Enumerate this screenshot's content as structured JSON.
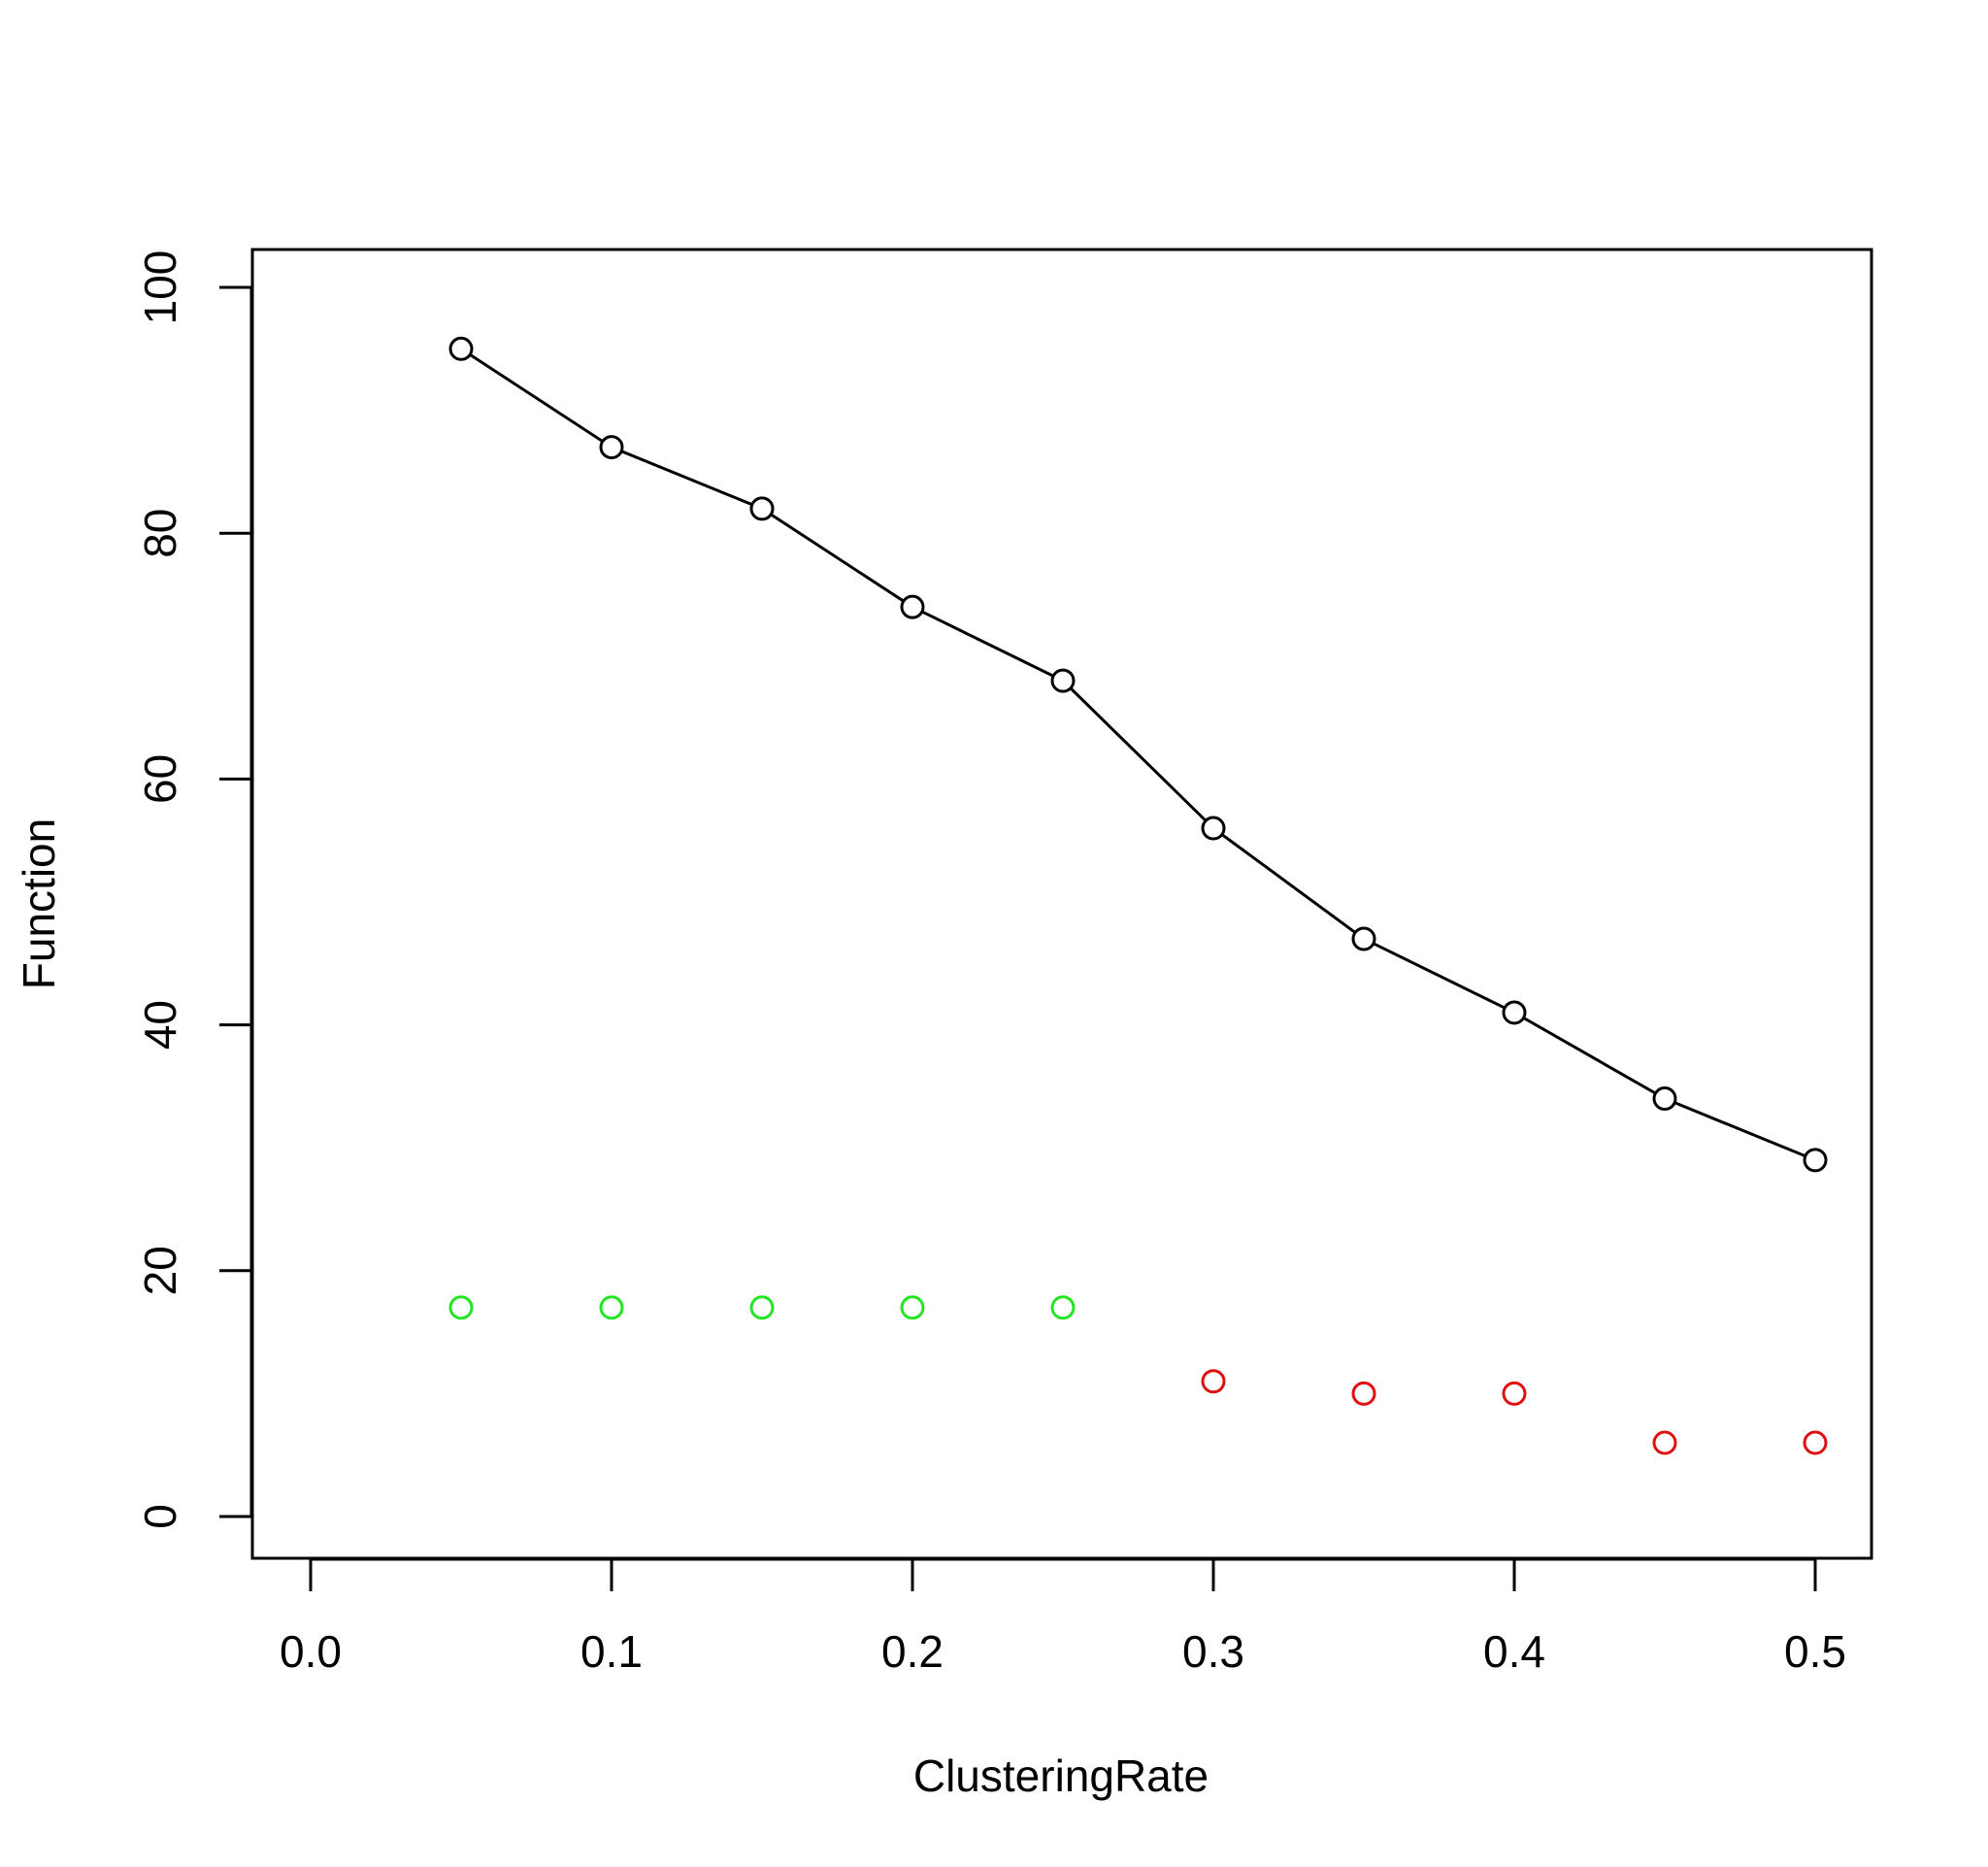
{
  "chart_data": {
    "type": "line",
    "title": "",
    "xlabel": "ClusteringRate",
    "ylabel": "Function",
    "xlim": [
      0.0,
      0.5
    ],
    "ylim": [
      0,
      100
    ],
    "x_ticks": [
      "0.0",
      "0.1",
      "0.2",
      "0.3",
      "0.4",
      "0.5"
    ],
    "y_ticks": [
      "0",
      "20",
      "40",
      "60",
      "80",
      "100"
    ],
    "grid": false,
    "legend": "none",
    "series": [
      {
        "type": "line",
        "marker": "open-circle",
        "color": "#000000",
        "x": [
          0.05,
          0.1,
          0.15,
          0.2,
          0.25,
          0.3,
          0.35,
          0.4,
          0.45,
          0.5
        ],
        "y": [
          95,
          87,
          82,
          74,
          68,
          56,
          47,
          41,
          34,
          29
        ]
      },
      {
        "type": "scatter",
        "marker": "open-circle",
        "color": "#22e622",
        "x": [
          0.05,
          0.1,
          0.15,
          0.2,
          0.25
        ],
        "y": [
          17,
          17,
          17,
          17,
          17
        ]
      },
      {
        "type": "scatter",
        "marker": "open-circle",
        "color": "#e01010",
        "x": [
          0.3,
          0.35,
          0.4,
          0.45,
          0.5
        ],
        "y": [
          11,
          10,
          10,
          6,
          6
        ]
      }
    ]
  }
}
